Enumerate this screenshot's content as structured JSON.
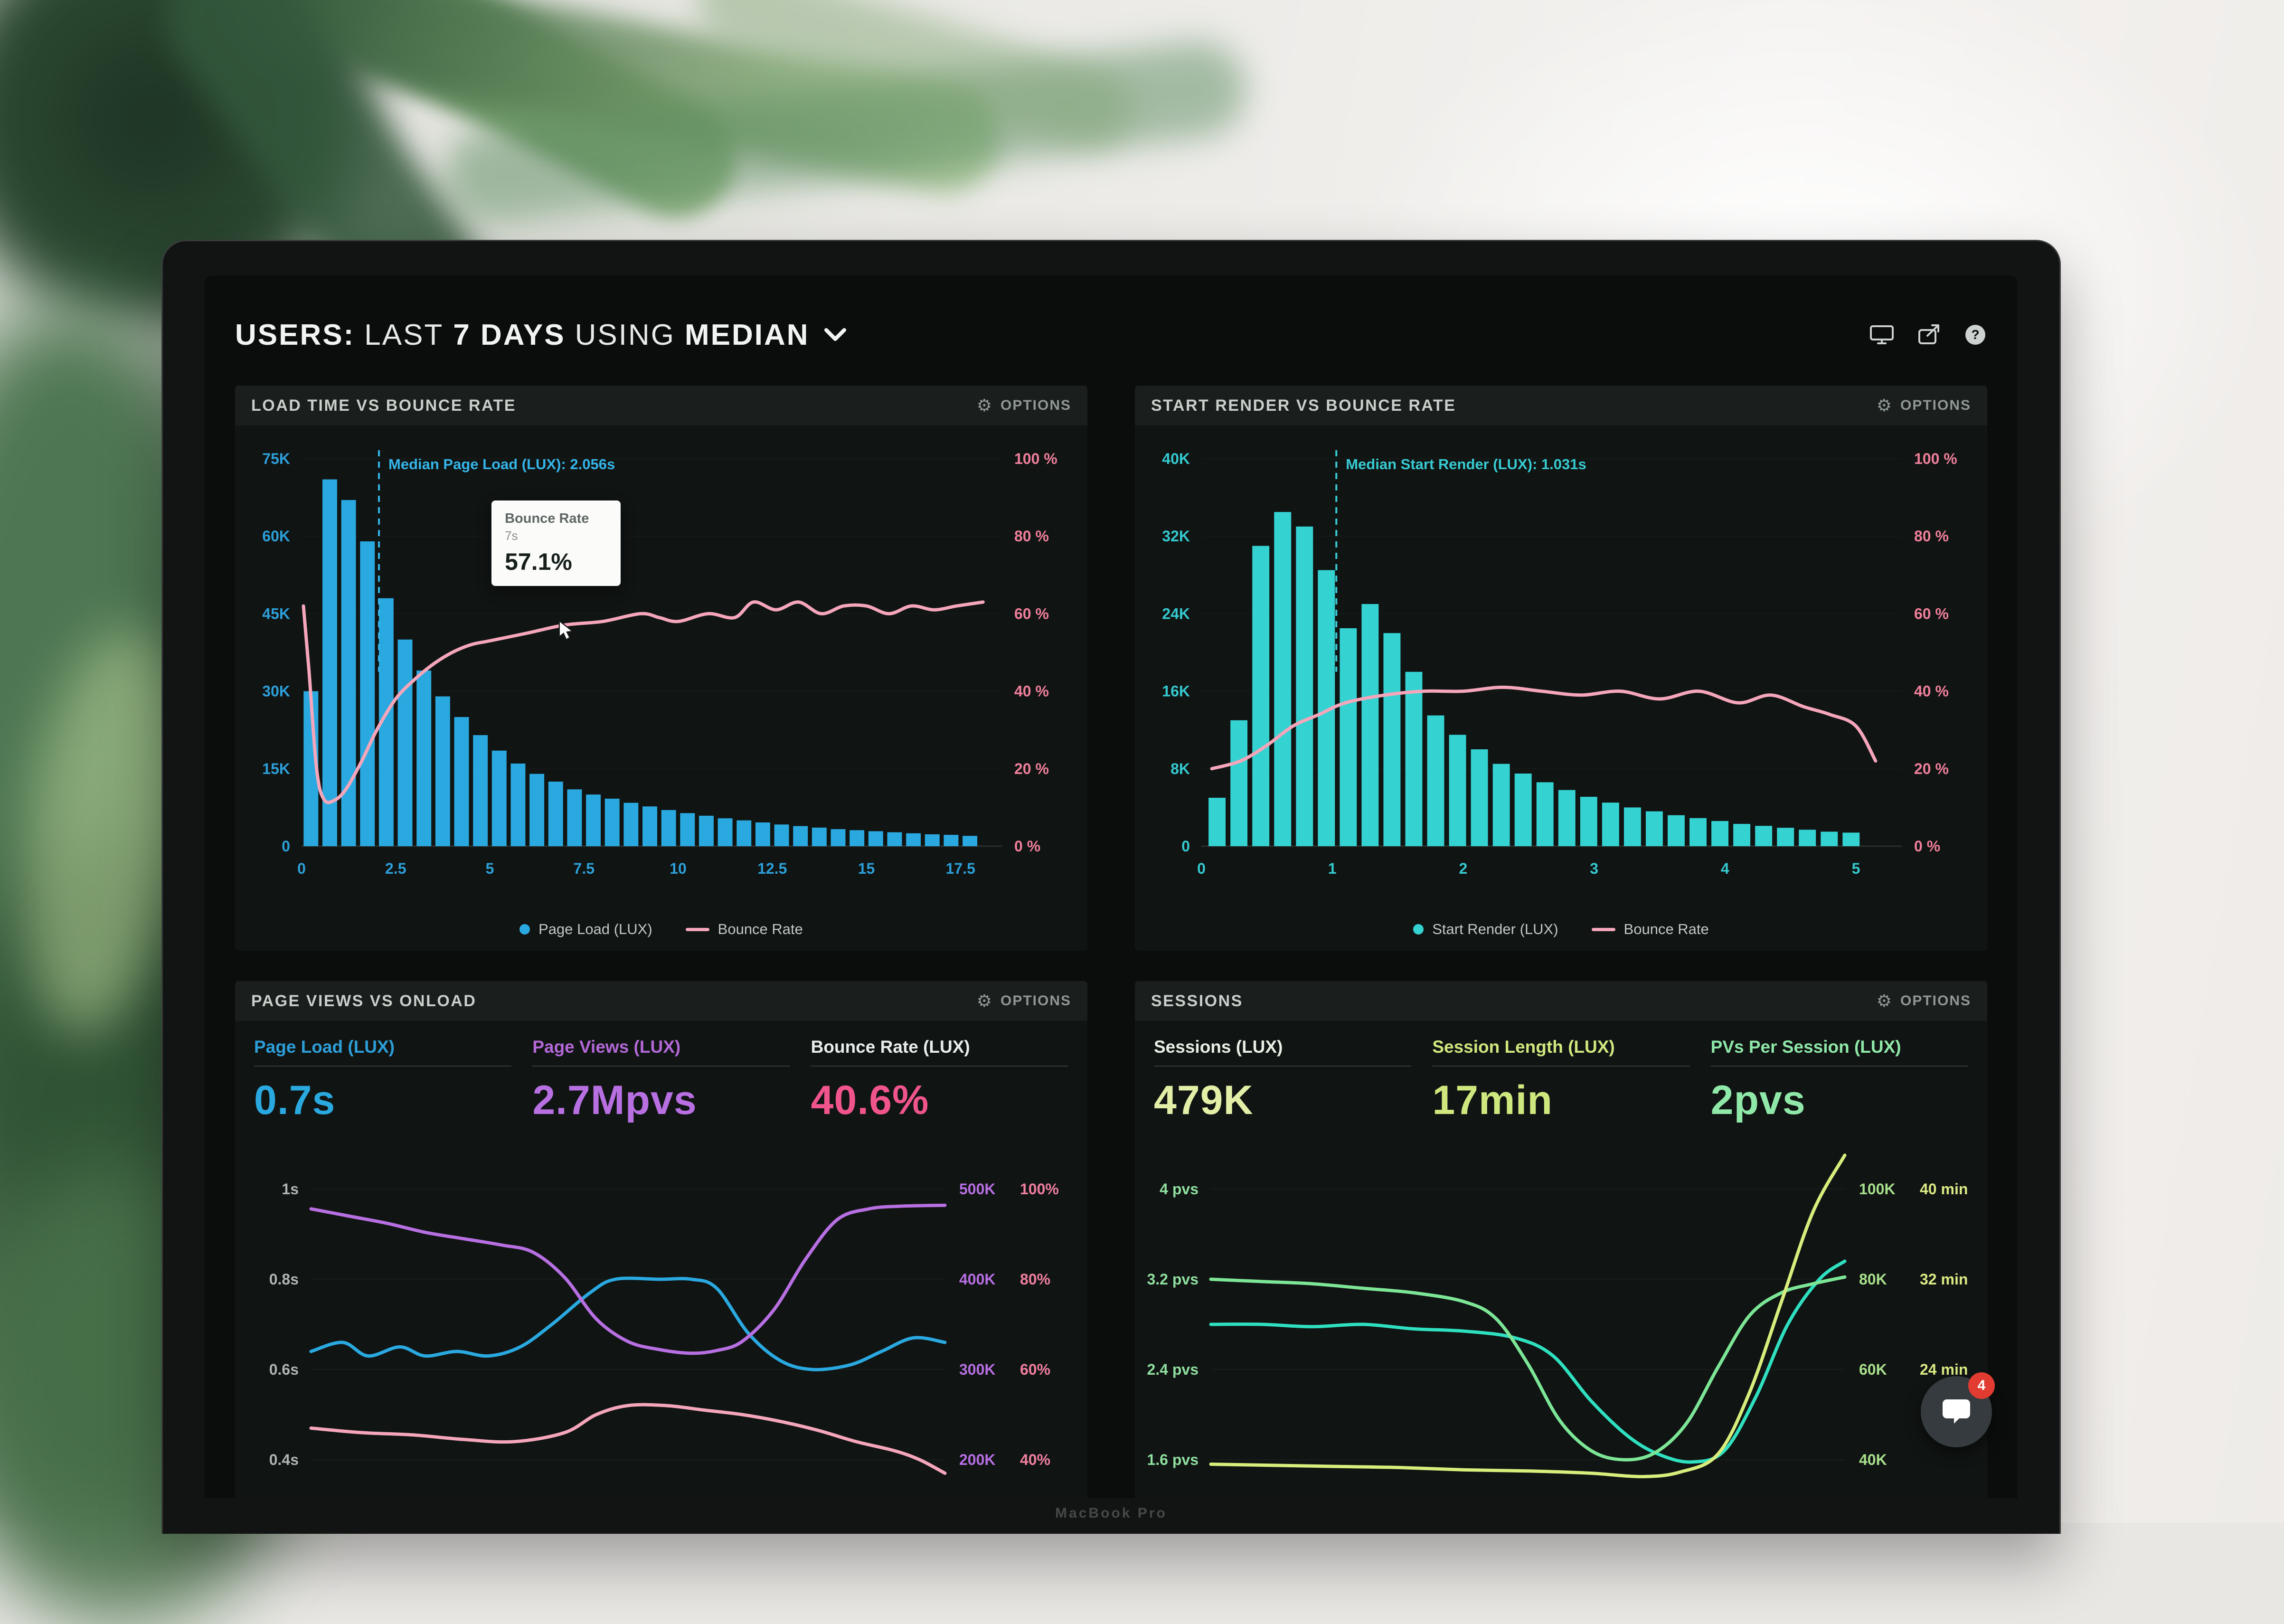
{
  "window": {
    "header": {
      "s1": "USERS:",
      "s2": "LAST",
      "s3": "7 DAYS",
      "s4": "USING",
      "s5": "MEDIAN",
      "header_icons": [
        "display-icon",
        "share-icon",
        "help-icon"
      ]
    },
    "brand": "MacBook Pro",
    "chat": {
      "badge": "4"
    }
  },
  "chart_data": [
    {
      "id": "load-time-vs-bounce-rate",
      "type": "bar",
      "title": "LOAD TIME VS BOUNCE RATE",
      "options_label": "OPTIONS",
      "y_left": {
        "labels": [
          "75K",
          "60K",
          "45K",
          "30K",
          "15K",
          "0"
        ],
        "max": 75,
        "color": "#2d9fd8"
      },
      "y_right": {
        "labels": [
          "100 %",
          "80 %",
          "60 %",
          "40 %",
          "20 %",
          "0 %"
        ],
        "max": 100,
        "color": "#ef7f9a"
      },
      "x_ticks": [
        0,
        2.5,
        5,
        7.5,
        10,
        12.5,
        15,
        17.5
      ],
      "x_max": 18.6,
      "bars": {
        "name": "Page Load (LUX)",
        "color": "#2aa9e0",
        "x_start": 0.25,
        "x_step": 0.5,
        "values_k": [
          30,
          71,
          67,
          59,
          48,
          40,
          34,
          29,
          25,
          21.5,
          18.5,
          16,
          14,
          12.5,
          11,
          10,
          9.2,
          8.4,
          7.7,
          7,
          6.4,
          5.9,
          5.4,
          5,
          4.6,
          4.2,
          3.9,
          3.6,
          3.3,
          3.1,
          2.9,
          2.7,
          2.5,
          2.3,
          2.2,
          2
        ]
      },
      "line": {
        "name": "Bounce Rate",
        "color": "#f5a6ba",
        "points": [
          [
            0.05,
            62
          ],
          [
            0.2,
            45
          ],
          [
            0.4,
            20
          ],
          [
            0.6,
            12
          ],
          [
            0.9,
            12
          ],
          [
            1.2,
            15
          ],
          [
            1.6,
            22
          ],
          [
            2,
            30
          ],
          [
            2.5,
            38
          ],
          [
            3,
            43
          ],
          [
            3.5,
            47
          ],
          [
            4,
            50
          ],
          [
            4.5,
            52
          ],
          [
            5,
            53
          ],
          [
            6,
            55
          ],
          [
            7,
            57.1
          ],
          [
            8,
            58
          ],
          [
            9,
            60
          ],
          [
            9.5,
            59
          ],
          [
            10,
            58
          ],
          [
            10.8,
            60
          ],
          [
            11.5,
            59
          ],
          [
            12,
            63
          ],
          [
            12.6,
            61
          ],
          [
            13.2,
            63
          ],
          [
            13.8,
            60
          ],
          [
            14.4,
            62
          ],
          [
            15,
            62
          ],
          [
            15.6,
            60
          ],
          [
            16.2,
            62
          ],
          [
            16.8,
            61
          ],
          [
            17.4,
            62
          ],
          [
            18.1,
            63
          ]
        ]
      },
      "median": {
        "x": 2.056,
        "label": "Median Page Load (LUX): 2.056s",
        "color": "#35b5e8"
      },
      "tooltip": {
        "title": "Bounce Rate",
        "sub": "7s",
        "value": "57.1%",
        "x": 7,
        "y_pct": 57.1
      },
      "legend": [
        {
          "label": "Page Load (LUX)",
          "marker": "dot",
          "color": "#2aa9e0"
        },
        {
          "label": "Bounce Rate",
          "marker": "line",
          "color": "#f5a6ba"
        }
      ]
    },
    {
      "id": "start-render-vs-bounce-rate",
      "type": "bar",
      "title": "START RENDER VS BOUNCE RATE",
      "options_label": "OPTIONS",
      "y_left": {
        "labels": [
          "40K",
          "32K",
          "24K",
          "16K",
          "8K",
          "0"
        ],
        "max": 40,
        "color": "#35c9cf"
      },
      "y_right": {
        "labels": [
          "100 %",
          "80 %",
          "60 %",
          "40 %",
          "20 %",
          "0 %"
        ],
        "max": 100,
        "color": "#ef7f9a"
      },
      "x_ticks": [
        0,
        1,
        2,
        3,
        4,
        5
      ],
      "x_max": 5.35,
      "bars": {
        "name": "Start Render (LUX)",
        "color": "#35d2d2",
        "x_start": 0.12,
        "x_step": 0.167,
        "values_k": [
          5,
          13,
          31,
          34.5,
          33,
          28.5,
          22.5,
          25,
          22,
          18,
          13.5,
          11.5,
          10,
          8.5,
          7.5,
          6.6,
          5.8,
          5.1,
          4.5,
          4,
          3.6,
          3.2,
          2.9,
          2.6,
          2.3,
          2.1,
          1.9,
          1.7,
          1.5,
          1.4
        ]
      },
      "line": {
        "name": "Bounce Rate",
        "color": "#f5a6ba",
        "points": [
          [
            0.08,
            20
          ],
          [
            0.3,
            22
          ],
          [
            0.5,
            26
          ],
          [
            0.7,
            31
          ],
          [
            0.9,
            34
          ],
          [
            1.1,
            37
          ],
          [
            1.4,
            39
          ],
          [
            1.7,
            40
          ],
          [
            2,
            40
          ],
          [
            2.3,
            41
          ],
          [
            2.6,
            40
          ],
          [
            2.9,
            39
          ],
          [
            3.2,
            40
          ],
          [
            3.5,
            38
          ],
          [
            3.8,
            40
          ],
          [
            4.1,
            37
          ],
          [
            4.35,
            39
          ],
          [
            4.6,
            36
          ],
          [
            4.8,
            34
          ],
          [
            5,
            31
          ],
          [
            5.15,
            22
          ]
        ]
      },
      "median": {
        "x": 1.031,
        "label": "Median Start Render (LUX): 1.031s",
        "color": "#38cbd2"
      },
      "legend": [
        {
          "label": "Start Render (LUX)",
          "marker": "dot",
          "color": "#35d2d2"
        },
        {
          "label": "Bounce Rate",
          "marker": "line",
          "color": "#f5a6ba"
        }
      ]
    },
    {
      "id": "page-views-vs-onload",
      "type": "line",
      "title": "PAGE VIEWS VS ONLOAD",
      "options_label": "OPTIONS",
      "metrics": [
        {
          "label": "Page Load (LUX)",
          "value": "0.7s",
          "label_color": "#2d9fd8",
          "value_color": "#2aa9e0"
        },
        {
          "label": "Page Views (LUX)",
          "value": "2.7Mpvs",
          "label_color": "#b468d8",
          "value_color": "#b76fe2"
        },
        {
          "label": "Bounce Rate (LUX)",
          "value": "40.6%",
          "label_color": "#e9edeb",
          "value_color": "#f0548c"
        }
      ],
      "row_fracs": [
        0.1,
        0.35,
        0.6,
        0.85
      ],
      "rows": [
        {
          "left": "1s",
          "right": [
            "500K",
            "100%"
          ]
        },
        {
          "left": "0.8s",
          "right": [
            "400K",
            "80%"
          ]
        },
        {
          "left": "0.6s",
          "right": [
            "300K",
            "60%"
          ]
        },
        {
          "left": "0.4s",
          "right": [
            "200K",
            "40%"
          ]
        }
      ],
      "left_color": "#aeb6b2",
      "right_colors": [
        "#b76fe2",
        "#f07f9f"
      ],
      "series": [
        {
          "name": "Page Load (LUX)",
          "color": "#2aa9e0",
          "ylim": [
            0.28,
            1.08
          ],
          "points": [
            [
              0,
              0.64
            ],
            [
              5,
              0.66
            ],
            [
              9,
              0.63
            ],
            [
              14,
              0.65
            ],
            [
              18,
              0.63
            ],
            [
              23,
              0.64
            ],
            [
              28,
              0.63
            ],
            [
              33,
              0.65
            ],
            [
              38,
              0.7
            ],
            [
              44,
              0.77
            ],
            [
              48,
              0.8
            ],
            [
              55,
              0.8
            ],
            [
              60,
              0.8
            ],
            [
              64,
              0.78
            ],
            [
              69,
              0.68
            ],
            [
              74,
              0.62
            ],
            [
              79,
              0.6
            ],
            [
              85,
              0.61
            ],
            [
              90,
              0.64
            ],
            [
              95,
              0.67
            ],
            [
              100,
              0.66
            ]
          ]
        },
        {
          "name": "Page Views (LUX)",
          "color": "#b76fe2",
          "ylim": [
            140,
            540
          ],
          "points": [
            [
              0,
              478
            ],
            [
              6,
              470
            ],
            [
              12,
              462
            ],
            [
              18,
              452
            ],
            [
              24,
              445
            ],
            [
              30,
              438
            ],
            [
              35,
              430
            ],
            [
              40,
              402
            ],
            [
              45,
              356
            ],
            [
              50,
              331
            ],
            [
              55,
              322
            ],
            [
              60,
              318
            ],
            [
              64,
              321
            ],
            [
              68,
              331
            ],
            [
              73,
              366
            ],
            [
              78,
              422
            ],
            [
              83,
              466
            ],
            [
              88,
              478
            ],
            [
              93,
              481
            ],
            [
              100,
              482
            ]
          ]
        },
        {
          "name": "Bounce Rate (LUX)",
          "color": "#f5a6ba",
          "ylim": [
            28,
            108
          ],
          "points": [
            [
              0,
              47
            ],
            [
              8,
              46
            ],
            [
              16,
              45.5
            ],
            [
              24,
              44.5
            ],
            [
              32,
              44
            ],
            [
              40,
              46
            ],
            [
              45,
              50
            ],
            [
              50,
              52
            ],
            [
              56,
              52
            ],
            [
              62,
              51
            ],
            [
              68,
              50
            ],
            [
              74,
              48.5
            ],
            [
              80,
              46.5
            ],
            [
              86,
              44
            ],
            [
              92,
              42
            ],
            [
              96,
              40
            ],
            [
              100,
              37
            ]
          ]
        }
      ]
    },
    {
      "id": "sessions",
      "type": "line",
      "title": "SESSIONS",
      "options_label": "OPTIONS",
      "metrics": [
        {
          "label": "Sessions (LUX)",
          "value": "479K",
          "label_color": "#e9efe4",
          "value_color": "#e3efa6"
        },
        {
          "label": "Session Length (LUX)",
          "value": "17min",
          "label_color": "#cfe87e",
          "value_color": "#cfe87e"
        },
        {
          "label": "PVs Per Session (LUX)",
          "value": "2pvs",
          "label_color": "#8fe8a8",
          "value_color": "#8fe8a8"
        }
      ],
      "row_fracs": [
        0.1,
        0.35,
        0.6,
        0.85
      ],
      "rows": [
        {
          "left": "4 pvs",
          "right": [
            "100K",
            "40 min"
          ]
        },
        {
          "left": "3.2 pvs",
          "right": [
            "80K",
            "32 min"
          ]
        },
        {
          "left": "2.4 pvs",
          "right": [
            "60K",
            "24 min"
          ]
        },
        {
          "left": "1.6 pvs",
          "right": [
            "40K",
            ""
          ]
        }
      ],
      "left_color": "#8fdf9f",
      "right_colors": [
        "#a8e08c",
        "#dcea84"
      ],
      "series": [
        {
          "name": "Sessions (LUX)",
          "color": "#2fe0c0",
          "ylim": [
            28,
            108
          ],
          "points": [
            [
              0,
              70
            ],
            [
              8,
              70
            ],
            [
              16,
              69.5
            ],
            [
              24,
              70
            ],
            [
              32,
              69
            ],
            [
              40,
              68.5
            ],
            [
              48,
              67
            ],
            [
              54,
              63
            ],
            [
              60,
              53
            ],
            [
              66,
              45
            ],
            [
              71,
              41
            ],
            [
              76,
              39.5
            ],
            [
              81,
              42
            ],
            [
              86,
              54
            ],
            [
              91,
              70
            ],
            [
              96,
              80
            ],
            [
              100,
              84
            ]
          ]
        },
        {
          "name": "PVs Per Session (LUX)",
          "color": "#7ce696",
          "ylim": [
            1.12,
            4.32
          ],
          "points": [
            [
              0,
              3.2
            ],
            [
              8,
              3.18
            ],
            [
              16,
              3.16
            ],
            [
              24,
              3.12
            ],
            [
              32,
              3.08
            ],
            [
              40,
              3.0
            ],
            [
              45,
              2.85
            ],
            [
              50,
              2.45
            ],
            [
              55,
              1.95
            ],
            [
              60,
              1.68
            ],
            [
              65,
              1.6
            ],
            [
              70,
              1.66
            ],
            [
              75,
              1.92
            ],
            [
              80,
              2.42
            ],
            [
              85,
              2.88
            ],
            [
              90,
              3.08
            ],
            [
              95,
              3.16
            ],
            [
              100,
              3.22
            ]
          ]
        },
        {
          "name": "Session Length (LUX)",
          "color": "#d8ee7c",
          "ylim": [
            11.2,
            43.2
          ],
          "points": [
            [
              0,
              15.6
            ],
            [
              10,
              15.5
            ],
            [
              20,
              15.4
            ],
            [
              30,
              15.3
            ],
            [
              40,
              15.1
            ],
            [
              50,
              15.0
            ],
            [
              60,
              14.8
            ],
            [
              68,
              14.5
            ],
            [
              74,
              14.9
            ],
            [
              80,
              16.5
            ],
            [
              85,
              22
            ],
            [
              90,
              30
            ],
            [
              95,
              38
            ],
            [
              100,
              43
            ]
          ]
        }
      ]
    }
  ]
}
